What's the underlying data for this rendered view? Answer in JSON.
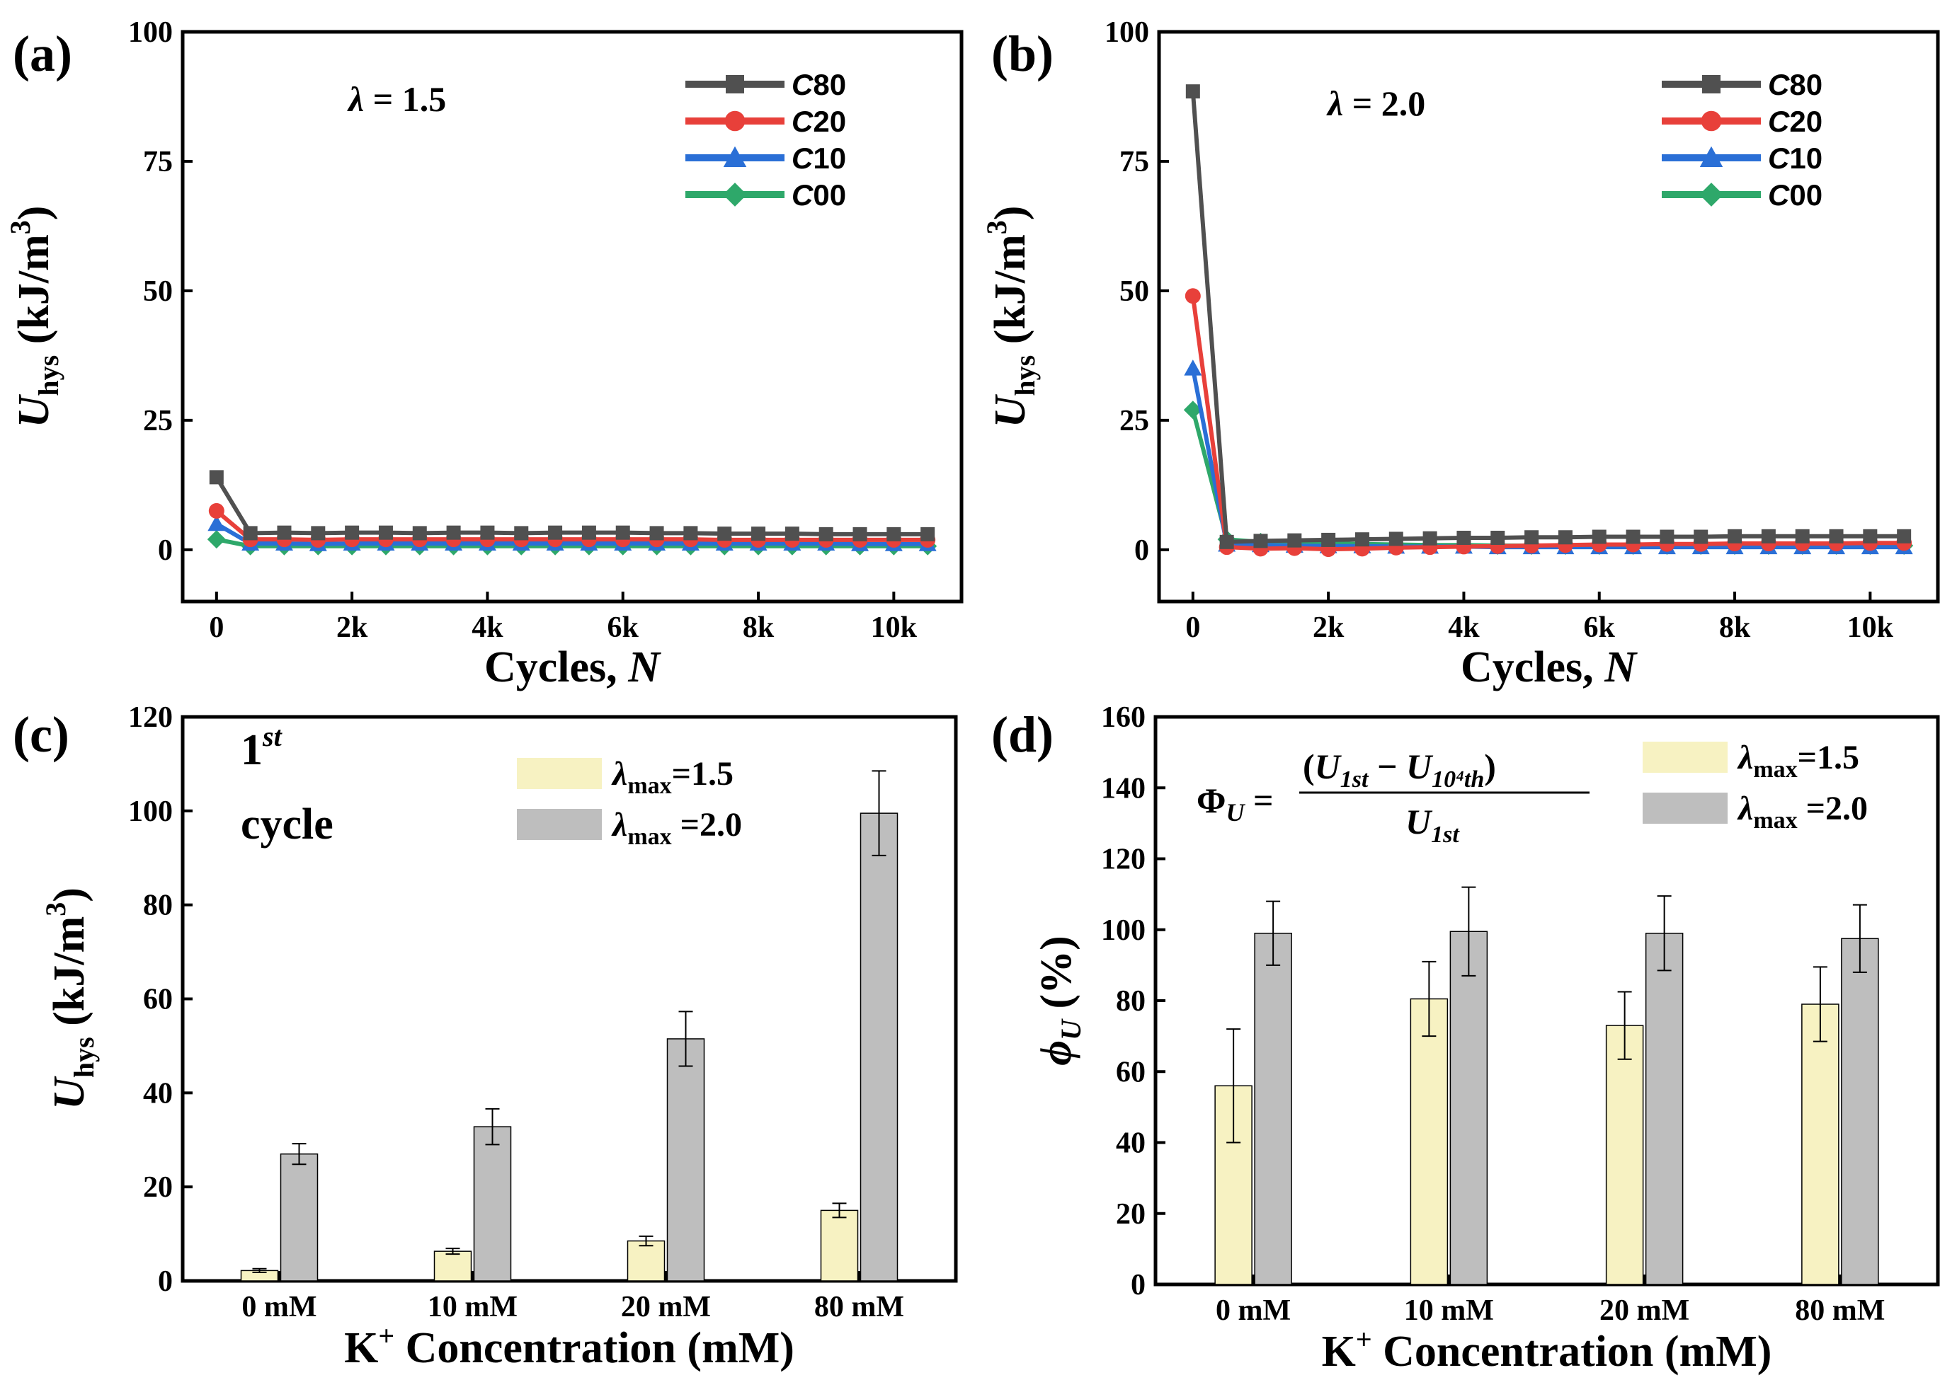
{
  "chart_data": [
    {
      "panel": "(a)",
      "type": "line",
      "annotation": "λ = 1.5",
      "xlabel": "Cycles, N",
      "ylabel": "U_hys (kJ/m^3)",
      "xlim": [
        -500,
        11000
      ],
      "ylim": [
        -10,
        100
      ],
      "xticks": [
        0,
        2000,
        4000,
        6000,
        8000,
        10000
      ],
      "xticklabels": [
        "0",
        "2k",
        "4k",
        "6k",
        "8k",
        "10k"
      ],
      "yticks": [
        0,
        25,
        50,
        75,
        100
      ],
      "legend_position": "top-right",
      "x": [
        0,
        500,
        1000,
        1500,
        2000,
        2500,
        3000,
        3500,
        4000,
        4500,
        5000,
        5500,
        6000,
        6500,
        7000,
        7500,
        8000,
        8500,
        9000,
        9500,
        10000,
        10500
      ],
      "series": [
        {
          "name": "C80",
          "color": "#505050",
          "marker": "square",
          "values": [
            14,
            3.2,
            3.3,
            3.2,
            3.3,
            3.3,
            3.2,
            3.3,
            3.3,
            3.2,
            3.3,
            3.3,
            3.3,
            3.2,
            3.2,
            3.1,
            3.1,
            3.1,
            3.0,
            3.0,
            3.0,
            3.0
          ]
        },
        {
          "name": "C20",
          "color": "#e8403a",
          "marker": "circle",
          "values": [
            7.5,
            2.0,
            2.0,
            1.9,
            2.0,
            2.0,
            2.0,
            2.0,
            2.0,
            2.0,
            2.0,
            2.0,
            2.0,
            2.0,
            2.0,
            1.9,
            1.9,
            1.9,
            1.9,
            1.9,
            1.9,
            1.9
          ]
        },
        {
          "name": "C10",
          "color": "#2a6fd6",
          "marker": "triangle",
          "values": [
            5.0,
            1.2,
            1.2,
            1.1,
            1.2,
            1.2,
            1.2,
            1.2,
            1.2,
            1.2,
            1.2,
            1.2,
            1.2,
            1.2,
            1.2,
            1.2,
            1.2,
            1.2,
            1.2,
            1.1,
            1.1,
            1.1
          ]
        },
        {
          "name": "C00",
          "color": "#2ea86a",
          "marker": "diamond",
          "values": [
            2.0,
            0.7,
            0.7,
            0.7,
            0.7,
            0.7,
            0.7,
            0.7,
            0.7,
            0.7,
            0.7,
            0.7,
            0.7,
            0.7,
            0.7,
            0.7,
            0.7,
            0.7,
            0.7,
            0.7,
            0.7,
            0.7
          ]
        }
      ]
    },
    {
      "panel": "(b)",
      "type": "line",
      "annotation": "λ = 2.0",
      "xlabel": "Cycles, N",
      "ylabel": "U_hys (kJ/m^3)",
      "xlim": [
        -500,
        11000
      ],
      "ylim": [
        -10,
        100
      ],
      "xticks": [
        0,
        2000,
        4000,
        6000,
        8000,
        10000
      ],
      "xticklabels": [
        "0",
        "2k",
        "4k",
        "6k",
        "8k",
        "10k"
      ],
      "yticks": [
        0,
        25,
        50,
        75,
        100
      ],
      "legend_position": "top-right",
      "x": [
        0,
        500,
        1000,
        1500,
        2000,
        2500,
        3000,
        3500,
        4000,
        4500,
        5000,
        5500,
        6000,
        6500,
        7000,
        7500,
        8000,
        8500,
        9000,
        9500,
        10000,
        10500
      ],
      "series": [
        {
          "name": "C80",
          "color": "#505050",
          "marker": "square",
          "values": [
            88.5,
            1.5,
            1.7,
            1.8,
            1.9,
            2.0,
            2.1,
            2.2,
            2.3,
            2.3,
            2.4,
            2.4,
            2.5,
            2.5,
            2.5,
            2.5,
            2.6,
            2.6,
            2.6,
            2.6,
            2.6,
            2.6
          ]
        },
        {
          "name": "C20",
          "color": "#e8403a",
          "marker": "circle",
          "values": [
            49,
            0.5,
            0.2,
            0.3,
            0.1,
            0.2,
            0.4,
            0.5,
            0.6,
            0.7,
            0.8,
            0.9,
            1.0,
            1.0,
            1.1,
            1.1,
            1.2,
            1.2,
            1.2,
            1.2,
            1.3,
            1.3
          ]
        },
        {
          "name": "C10",
          "color": "#2a6fd6",
          "marker": "triangle",
          "values": [
            35,
            1.0,
            0.9,
            0.8,
            0.7,
            0.7,
            0.6,
            0.6,
            0.6,
            0.5,
            0.5,
            0.5,
            0.5,
            0.5,
            0.5,
            0.5,
            0.5,
            0.5,
            0.5,
            0.5,
            0.5,
            0.5
          ]
        },
        {
          "name": "C00",
          "color": "#2ea86a",
          "marker": "diamond",
          "values": [
            27,
            2.0,
            1.5,
            1.3,
            1.2,
            1.1,
            1.0,
            0.9,
            0.9,
            0.8,
            0.8,
            0.8,
            0.8,
            0.8,
            0.8,
            0.8,
            0.8,
            0.8,
            0.8,
            0.8,
            0.8,
            0.8
          ]
        }
      ]
    },
    {
      "panel": "(c)",
      "type": "bar",
      "annotation_line1": "1st",
      "annotation_line2": "cycle",
      "xlabel": "K+ Concentration (mM)",
      "ylabel": "U_hys (kJ/m^3)",
      "ylim": [
        0,
        120
      ],
      "yticks": [
        0,
        20,
        40,
        60,
        80,
        100,
        120
      ],
      "categories": [
        "0 mM",
        "10 mM",
        "20 mM",
        "80 mM"
      ],
      "legend_position": "top-right",
      "series": [
        {
          "name": "λmax=1.5",
          "color": "#f7f2c2",
          "values": [
            2.2,
            6.3,
            8.5,
            15.0
          ],
          "errors": [
            0.4,
            0.6,
            1.0,
            1.5
          ]
        },
        {
          "name": "λmax =2.0",
          "color": "#bebebe",
          "values": [
            27.0,
            32.8,
            51.5,
            99.5
          ],
          "errors": [
            2.2,
            3.8,
            5.8,
            9.0
          ]
        }
      ]
    },
    {
      "panel": "(d)",
      "type": "bar",
      "formula": "ΦU = (U1st − U10⁴th) / U1st",
      "xlabel": "K+ Concentration (mM)",
      "ylabel": "ϕU (%)",
      "ylim": [
        0,
        160
      ],
      "yticks": [
        0,
        20,
        40,
        60,
        80,
        100,
        120,
        140,
        160
      ],
      "categories": [
        "0 mM",
        "10 mM",
        "20 mM",
        "80 mM"
      ],
      "legend_position": "top-right",
      "series": [
        {
          "name": "λmax=1.5",
          "color": "#f7f2c2",
          "values": [
            56,
            80.5,
            73,
            79
          ],
          "errors": [
            16,
            10.5,
            9.5,
            10.5
          ]
        },
        {
          "name": "λmax =2.0",
          "color": "#bebebe",
          "values": [
            99,
            99.5,
            99,
            97.5
          ],
          "errors": [
            9,
            12.5,
            10.5,
            9.5
          ]
        }
      ]
    }
  ]
}
